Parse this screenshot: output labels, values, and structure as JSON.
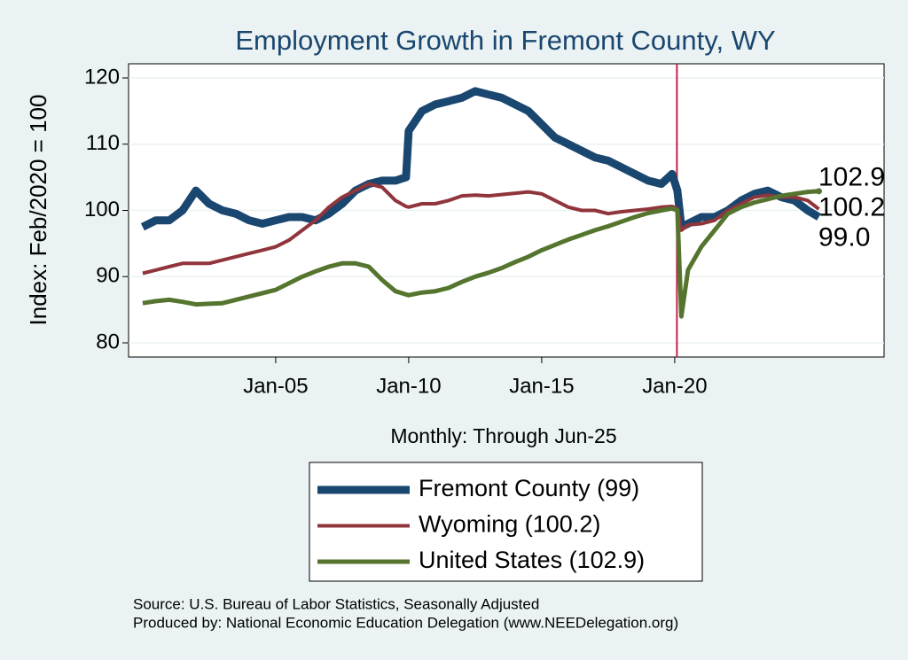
{
  "chart_data": {
    "type": "line",
    "title": "Employment Growth in Fremont  County, WY",
    "x_label": "Monthly: Through Jun-25",
    "y_label": "Index: Feb/2020 = 100",
    "x": [
      2000,
      2000.5,
      2001,
      2001.5,
      2002,
      2002.5,
      2003,
      2003.5,
      2004,
      2004.5,
      2005,
      2005.5,
      2006,
      2006.5,
      2007,
      2007.5,
      2008,
      2008.5,
      2009,
      2009.5,
      2009.9,
      2010,
      2010.5,
      2011,
      2011.5,
      2012,
      2012.5,
      2013,
      2013.5,
      2014,
      2014.5,
      2015,
      2015.5,
      2016,
      2016.5,
      2017,
      2017.5,
      2018,
      2018.5,
      2019,
      2019.5,
      2019.9,
      2020.1,
      2020.25,
      2020.5,
      2021,
      2021.5,
      2022,
      2022.5,
      2023,
      2023.5,
      2024,
      2024.5,
      2025,
      2025.42
    ],
    "series": [
      {
        "name": "Fremont  County (99)",
        "color": "#1a476f",
        "line_width": 9,
        "end_label": "99.0",
        "values": [
          97.5,
          98.5,
          98.5,
          100,
          103,
          101,
          100,
          99.5,
          98.5,
          98,
          98.5,
          99,
          99,
          98.5,
          99.5,
          101,
          103,
          104,
          104.5,
          104.5,
          105,
          112,
          115,
          116,
          116.5,
          117,
          118,
          117.5,
          117,
          116,
          115,
          113,
          111,
          110,
          109,
          108,
          107.5,
          106.5,
          105.5,
          104.5,
          104,
          105.5,
          103,
          97.5,
          98,
          99,
          99,
          100,
          101.5,
          102.5,
          103,
          102,
          101.5,
          100,
          99.0
        ]
      },
      {
        "name": "Wyoming (100.2)",
        "color": "#90353b",
        "line_width": 4,
        "end_label": "100.2",
        "values": [
          90.5,
          91,
          91.5,
          92,
          92,
          92,
          92.5,
          93,
          93.5,
          94,
          94.5,
          95.5,
          97,
          98.5,
          100.5,
          102,
          103,
          104,
          103.5,
          101.5,
          100.6,
          100.5,
          101,
          101,
          101.5,
          102.2,
          102.3,
          102.2,
          102.4,
          102.6,
          102.8,
          102.5,
          101.5,
          100.5,
          100,
          100,
          99.5,
          99.8,
          100,
          100.2,
          100.5,
          100.6,
          100.3,
          97,
          97.8,
          98,
          98.5,
          100,
          101,
          102,
          102.3,
          102,
          102,
          101.5,
          100.2
        ]
      },
      {
        "name": "United States (102.9)",
        "color": "#55752f",
        "line_width": 5,
        "end_label": "102.9",
        "end_marker": true,
        "values": [
          86,
          86.3,
          86.5,
          86.2,
          85.8,
          85.9,
          86,
          86.5,
          87,
          87.5,
          88,
          89,
          90,
          90.8,
          91.5,
          92,
          92,
          91.5,
          89.5,
          87.8,
          87.3,
          87.2,
          87.6,
          87.8,
          88.3,
          89.2,
          90,
          90.6,
          91.3,
          92.2,
          93,
          94,
          94.8,
          95.6,
          96.3,
          97,
          97.6,
          98.3,
          99,
          99.6,
          100,
          100.3,
          100,
          84,
          91,
          94.5,
          97,
          99.5,
          100.5,
          101.2,
          101.7,
          102.2,
          102.5,
          102.8,
          102.9
        ]
      }
    ],
    "xlim": [
      1999.47,
      2027.87
    ],
    "xticks": [
      {
        "value": 2005,
        "label": "Jan-05"
      },
      {
        "value": 2010,
        "label": "Jan-10"
      },
      {
        "value": 2015,
        "label": "Jan-15"
      },
      {
        "value": 2020,
        "label": "Jan-20"
      }
    ],
    "ylim": [
      77.86,
      122.14
    ],
    "yticks": [
      80,
      90,
      100,
      110,
      120
    ],
    "grid": true,
    "reference_line_x": 2020.083,
    "reference_line_color": "#c0254a",
    "notes": [
      "Source: U.S. Bureau of Labor Statistics, Seasonally Adjusted",
      "Produced by: National Economic Education Delegation (www.NEEDelegation.org)"
    ]
  }
}
